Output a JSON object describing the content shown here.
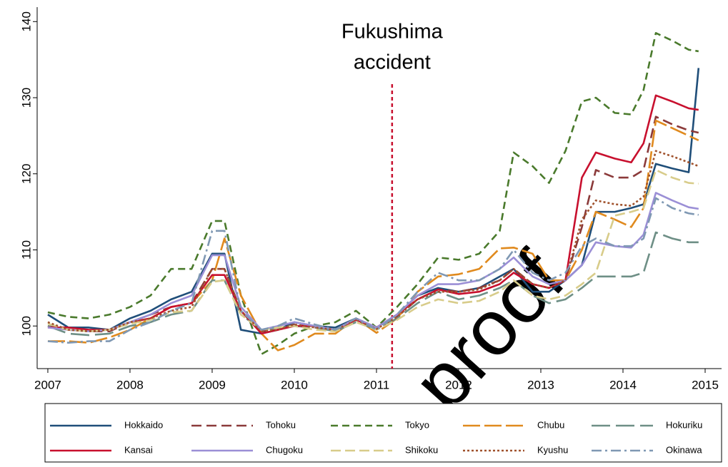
{
  "chart_data": {
    "type": "line",
    "x": [
      2007,
      2007.25,
      2007.5,
      2007.75,
      2008,
      2008.25,
      2008.5,
      2008.75,
      2009,
      2009.15,
      2009.35,
      2009.6,
      2009.8,
      2010,
      2010.25,
      2010.5,
      2010.75,
      2011,
      2011.25,
      2011.5,
      2011.75,
      2012,
      2012.25,
      2012.5,
      2012.67,
      2012.9,
      2013.1,
      2013.3,
      2013.5,
      2013.67,
      2013.9,
      2014.1,
      2014.25,
      2014.4,
      2014.6,
      2014.8,
      2014.92
    ],
    "series": [
      {
        "name": "Hokkaido",
        "color": "#1f4e79",
        "dash": "none",
        "values": [
          101.5,
          99.8,
          99.8,
          99.5,
          101,
          102,
          103.5,
          104.5,
          109.5,
          109.5,
          99.5,
          99,
          99.5,
          100.5,
          100,
          99.8,
          101,
          99.8,
          101.5,
          104,
          105,
          104.5,
          105,
          106.5,
          107.5,
          104.5,
          104.5,
          106,
          108,
          115,
          115,
          115.5,
          116,
          121.3,
          120.7,
          120.2,
          133.9
        ]
      },
      {
        "name": "Tohoku",
        "color": "#8b3a3a",
        "dash": "14,7",
        "values": [
          100,
          99.5,
          99.3,
          99.3,
          100.5,
          101.5,
          102.5,
          103,
          107.5,
          107.5,
          102,
          99.3,
          99.5,
          100.2,
          99.8,
          99.5,
          101,
          99.7,
          101.2,
          103.5,
          104.8,
          104.5,
          105,
          106,
          107.5,
          105.5,
          105,
          106,
          113,
          120.5,
          119.5,
          119.5,
          120.5,
          127.5,
          126.5,
          125.7,
          125.4
        ]
      },
      {
        "name": "Tokyo",
        "color": "#4a7a2c",
        "dash": "10,6",
        "values": [
          101.8,
          101.2,
          101,
          101.5,
          102.5,
          104,
          107.5,
          107.5,
          113.8,
          113.8,
          104,
          96.3,
          97.5,
          99,
          100,
          100.5,
          102,
          99.8,
          102.5,
          105.5,
          109,
          108.7,
          109.5,
          112.5,
          122.8,
          121,
          118.8,
          123,
          129.5,
          130,
          128,
          127.8,
          131,
          138.5,
          137.5,
          136.3,
          136.1
        ]
      },
      {
        "name": "Chubu",
        "color": "#e08a1e",
        "dash": "24,6",
        "values": [
          98,
          98,
          97.8,
          98.5,
          99.5,
          101,
          102.5,
          103,
          106,
          111.5,
          104,
          99,
          96.8,
          97.5,
          99,
          99,
          101,
          99.1,
          101,
          104.5,
          106.5,
          106.8,
          107.5,
          110.2,
          110.3,
          109.5,
          106,
          106,
          110,
          115,
          114,
          113,
          115.5,
          127,
          126,
          125,
          124.4
        ]
      },
      {
        "name": "Hokuriku",
        "color": "#6e8f86",
        "dash": "26,8",
        "values": [
          100,
          99,
          98.8,
          99,
          100,
          100.5,
          101.5,
          102,
          106,
          106,
          101.5,
          99.5,
          99.8,
          100,
          99.8,
          99.3,
          100.5,
          99.6,
          101,
          103,
          104.5,
          103.5,
          104,
          105,
          106,
          104,
          103,
          103.5,
          105,
          106.5,
          106.5,
          106.5,
          107,
          112.3,
          111.5,
          111,
          111
        ]
      },
      {
        "name": "Kansai",
        "color": "#c8102e",
        "dash": "none",
        "values": [
          99.8,
          99.8,
          99.5,
          99.5,
          100.5,
          101,
          102.5,
          103,
          106.7,
          106.7,
          102,
          99,
          99.5,
          100,
          100,
          99.5,
          100.8,
          99.8,
          101.5,
          103.5,
          104.8,
          104.2,
          104.5,
          105.5,
          107,
          105.5,
          105,
          106,
          119.5,
          122.8,
          122,
          121.5,
          124,
          130.3,
          129.5,
          128.6,
          128.4
        ]
      },
      {
        "name": "Chugoku",
        "color": "#9b8fd6",
        "dash": "none",
        "values": [
          99.8,
          99.5,
          99.3,
          99.5,
          100.5,
          101.5,
          103,
          104,
          109.3,
          109.3,
          102.5,
          99.5,
          100,
          100.5,
          100,
          99.5,
          101,
          99.8,
          101.5,
          104,
          105.5,
          105.5,
          106,
          107.5,
          109,
          106.5,
          105.5,
          106,
          108,
          111,
          110.5,
          110.3,
          112,
          117.5,
          116.5,
          115.6,
          115.4
        ]
      },
      {
        "name": "Shikoku",
        "color": "#d8cc8a",
        "dash": "14,6",
        "values": [
          100.3,
          99.5,
          99.3,
          99.5,
          100.3,
          100.8,
          101.8,
          102,
          105.8,
          106,
          101.5,
          99.5,
          99.8,
          100,
          99.5,
          99.3,
          100.5,
          99.5,
          100.8,
          102.5,
          103.5,
          103,
          103.3,
          104.5,
          106,
          104,
          103.5,
          104,
          105.5,
          107,
          114.5,
          115,
          115.5,
          120.5,
          119.5,
          118.8,
          118.7
        ]
      },
      {
        "name": "Kyushu",
        "color": "#a0522d",
        "dash": "3,3",
        "values": [
          100.5,
          99.5,
          99.3,
          99.5,
          100.5,
          101,
          102,
          102.5,
          107.5,
          107.5,
          102,
          99.3,
          99.5,
          100.2,
          99.8,
          99.5,
          100.8,
          99.6,
          101.2,
          103.5,
          104.5,
          104.5,
          104.8,
          106,
          107.5,
          105.5,
          105,
          106,
          114,
          116.5,
          116,
          115.8,
          117,
          123,
          122.3,
          121.5,
          121
        ]
      },
      {
        "name": "Okinawa",
        "color": "#7f98b3",
        "dash": "14,5,3,5",
        "values": [
          98,
          97.8,
          98,
          98,
          99.5,
          100.5,
          102,
          103,
          112.5,
          112.5,
          102,
          99.5,
          100,
          101,
          100.2,
          99.5,
          101,
          99.5,
          101.5,
          104.5,
          107,
          106,
          106,
          107.5,
          110,
          107,
          106,
          107,
          110.5,
          111.5,
          110.5,
          110.5,
          111.5,
          116.8,
          115.5,
          114.8,
          114.6
        ]
      }
    ],
    "annotation": {
      "lines": [
        "Fukushima",
        "accident"
      ],
      "x": 2011.19,
      "color": "#c8102e"
    },
    "watermark": "proof",
    "xlim": [
      2006.87,
      2015.2
    ],
    "ylim": [
      94.4,
      141.9
    ],
    "xticks": [
      2007,
      2008,
      2009,
      2010,
      2011,
      2012,
      2013,
      2014,
      2015
    ],
    "yticks": [
      100,
      110,
      120,
      130,
      140
    ],
    "legend": "bottom"
  }
}
